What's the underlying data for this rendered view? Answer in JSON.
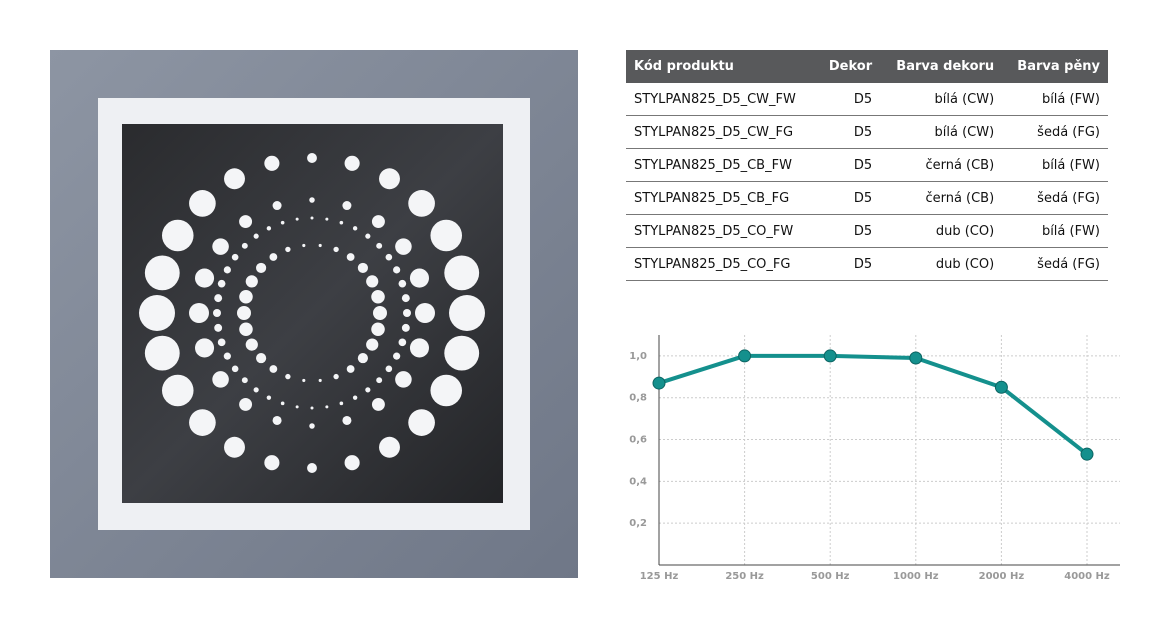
{
  "table": {
    "headers": [
      "Kód produktu",
      "Dekor",
      "Barva dekoru",
      "Barva pěny"
    ],
    "rows": [
      [
        "STYLPAN825_D5_CW_FW",
        "D5",
        "bílá (CW)",
        "bílá (FW)"
      ],
      [
        "STYLPAN825_D5_CW_FG",
        "D5",
        "bílá (CW)",
        "šedá (FG)"
      ],
      [
        "STYLPAN825_D5_CB_FW",
        "D5",
        "černá (CB)",
        "bílá (FW)"
      ],
      [
        "STYLPAN825_D5_CB_FG",
        "D5",
        "černá (CB)",
        "šedá (FG)"
      ],
      [
        "STYLPAN825_D5_CO_FW",
        "D5",
        "dub (CO)",
        "bílá (FW)"
      ],
      [
        "STYLPAN825_D5_CO_FG",
        "D5",
        "dub (CO)",
        "šedá (FG)"
      ]
    ]
  },
  "chart_data": {
    "type": "line",
    "categories": [
      "125 Hz",
      "250 Hz",
      "500 Hz",
      "1000 Hz",
      "2000 Hz",
      "4000 Hz"
    ],
    "values": [
      0.87,
      1.0,
      1.0,
      0.99,
      0.85,
      0.53
    ],
    "color": "#14908d",
    "ylim": [
      0,
      1.1
    ],
    "yticks": [
      {
        "value": 0.2,
        "label": "0,2"
      },
      {
        "value": 0.4,
        "label": "0,4"
      },
      {
        "value": 0.6,
        "label": "0,6"
      },
      {
        "value": 0.8,
        "label": "0,8"
      },
      {
        "value": 1.0,
        "label": "1,0"
      }
    ],
    "grid": true
  }
}
